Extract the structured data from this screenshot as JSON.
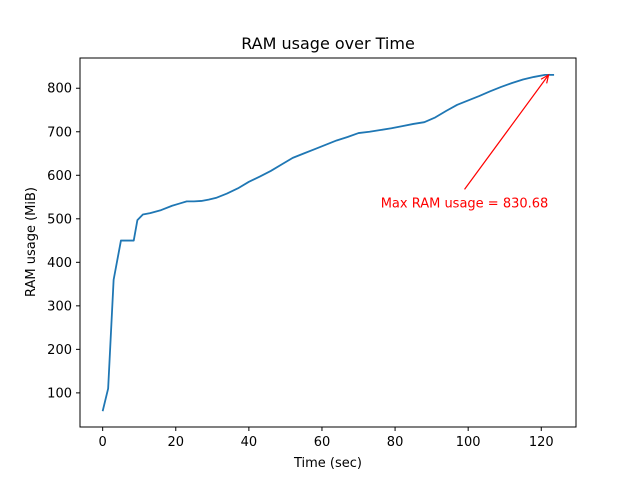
{
  "chart_data": {
    "type": "line",
    "title": "RAM usage over Time",
    "xlabel": "Time (sec)",
    "ylabel": "RAM usage (MiB)",
    "xlim": [
      -6.2,
      129.5
    ],
    "ylim": [
      21.6,
      869.5
    ],
    "xticks": [
      0,
      20,
      40,
      60,
      80,
      100,
      120
    ],
    "yticks": [
      100,
      200,
      300,
      400,
      500,
      600,
      700,
      800
    ],
    "grid": false,
    "series": [
      {
        "color": "#1f77b4",
        "x": [
          0,
          1.5,
          3,
          5,
          7,
          8.5,
          9.5,
          11,
          13,
          16,
          19,
          21,
          23,
          25,
          27,
          29,
          31,
          34,
          37,
          40,
          43,
          46,
          49,
          52,
          55,
          58,
          61,
          64,
          67,
          70,
          73,
          76,
          79,
          82,
          85,
          88,
          91,
          94,
          97,
          100,
          103,
          106,
          109,
          112,
          115,
          118,
          121,
          123.5
        ],
        "y": [
          58,
          110,
          360,
          450,
          450,
          450,
          497,
          510,
          513,
          520,
          530,
          535,
          540,
          540,
          541,
          544,
          548,
          558,
          570,
          585,
          597,
          610,
          625,
          640,
          650,
          660,
          670,
          680,
          688,
          697,
          700,
          704,
          708,
          713,
          718,
          722,
          733,
          748,
          762,
          772,
          782,
          793,
          803,
          812,
          820,
          826,
          830.68,
          830.68
        ]
      }
    ],
    "annotation": {
      "text": "Max RAM usage = 830.68",
      "color": "#ff0000",
      "point": [
        122,
        830.68
      ],
      "text_anchor_point": [
        99,
        540
      ]
    }
  }
}
